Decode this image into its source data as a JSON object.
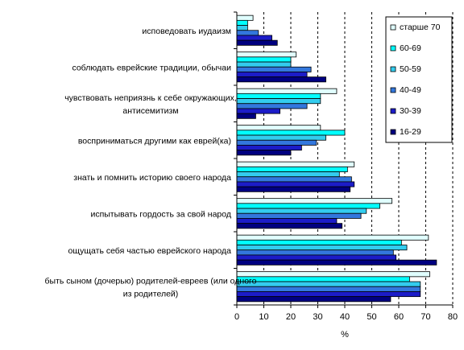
{
  "chart_data": {
    "type": "bar",
    "orientation": "horizontal",
    "xlabel": "%",
    "xlim": [
      0,
      80
    ],
    "xticks": [
      "0",
      "10",
      "20",
      "30",
      "40",
      "50",
      "60",
      "70",
      "80"
    ],
    "grid": "vertical dashed",
    "legend_position": "right",
    "categories": [
      [
        "исповедовать иудаизм"
      ],
      [
        "соблюдать еврейские традиции, обычаи"
      ],
      [
        "чувствовать неприязнь к себе окружающих,",
        "антисемитизм"
      ],
      [
        "восприниматься другими как еврей(ка)"
      ],
      [
        "знать и помнить историю своего народа"
      ],
      [
        "испытывать гордость за свой народ"
      ],
      [
        "ощущать себя частью еврейского народа"
      ],
      [
        "быть сыном (дочерью) родителей-евреев (или одного",
        "из родителей)"
      ]
    ],
    "series": [
      {
        "name": "старше 70",
        "color": "#e0ffff",
        "values": [
          6,
          22,
          37,
          31,
          43.5,
          57.5,
          71,
          71.5
        ]
      },
      {
        "name": "60-69",
        "color": "#00ffff",
        "values": [
          4,
          20,
          31,
          40,
          41,
          53,
          61,
          64
        ]
      },
      {
        "name": "50-59",
        "color": "#33ccee",
        "values": [
          4,
          20,
          31,
          33,
          38,
          48,
          63,
          68
        ]
      },
      {
        "name": "40-49",
        "color": "#3377dd",
        "values": [
          8,
          27.5,
          26,
          29.5,
          42.5,
          46,
          58,
          68
        ]
      },
      {
        "name": "30-39",
        "color": "#1c1cc8",
        "values": [
          13,
          26,
          16,
          24,
          43.5,
          37,
          59,
          68
        ]
      },
      {
        "name": "16-29",
        "color": "#000080",
        "values": [
          15,
          33,
          7,
          20,
          42,
          39,
          74,
          57
        ]
      }
    ]
  }
}
